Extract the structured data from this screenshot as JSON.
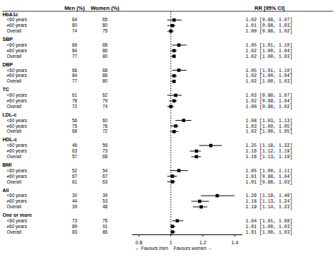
{
  "chart_data": {
    "type": "forest",
    "headers": {
      "men": "Men (%)",
      "women": "Women (%)",
      "rr": "RR [95% CI]"
    },
    "groups": [
      {
        "label": "HbA1c",
        "rows": [
          {
            "name": "<60 years",
            "men": 64,
            "women": 65,
            "rr": 1.02,
            "ci_lo": 0.98,
            "ci_hi": 1.07,
            "rr_text": "1.02 [0.98, 1.07]"
          },
          {
            "name": "≠60 years",
            "men": 80,
            "women": 80,
            "rr": 1.01,
            "ci_lo": 0.98,
            "ci_hi": 1.03,
            "rr_text": "1.01 [0.98, 1.03]"
          },
          {
            "name": "Overall",
            "men": 74,
            "women": 75,
            "rr": 1.0,
            "ci_lo": 0.98,
            "ci_hi": 1.02,
            "rr_text": "1.00 [0.98, 1.02]"
          }
        ]
      },
      {
        "label": "SBP",
        "rows": [
          {
            "name": "<60 years",
            "men": 66,
            "women": 68,
            "rr": 1.05,
            "ci_lo": 1.01,
            "ci_hi": 1.1,
            "rr_text": "1.05 [1.01, 1.10]"
          },
          {
            "name": "≠60 years",
            "men": 84,
            "women": 86,
            "rr": 1.02,
            "ci_lo": 1.0,
            "ci_hi": 1.04,
            "rr_text": "1.02 [1.00, 1.04]"
          },
          {
            "name": "Overall",
            "men": 77,
            "women": 80,
            "rr": 1.02,
            "ci_lo": 1.0,
            "ci_hi": 1.03,
            "rr_text": "1.02 [1.00, 1.03]"
          }
        ]
      },
      {
        "label": "DBP",
        "rows": [
          {
            "name": "<60 years",
            "men": 66,
            "women": 68,
            "rr": 1.05,
            "ci_lo": 1.01,
            "ci_hi": 1.1,
            "rr_text": "1.05 [1.01, 1.10]"
          },
          {
            "name": "≠60 years",
            "men": 84,
            "women": 86,
            "rr": 1.02,
            "ci_lo": 1.0,
            "ci_hi": 1.04,
            "rr_text": "1.02 [1.00, 1.04]"
          },
          {
            "name": "Overall",
            "men": 77,
            "women": 80,
            "rr": 1.02,
            "ci_lo": 1.0,
            "ci_hi": 1.03,
            "rr_text": "1.02 [1.00, 1.03]"
          }
        ]
      },
      {
        "label": "TC",
        "rows": [
          {
            "name": "<60 years",
            "men": 61,
            "women": 62,
            "rr": 1.03,
            "ci_lo": 0.98,
            "ci_hi": 1.07,
            "rr_text": "1.03 [0.98, 1.07]"
          },
          {
            "name": "≠60 years",
            "men": 78,
            "women": 79,
            "rr": 1.02,
            "ci_lo": 0.99,
            "ci_hi": 1.04,
            "rr_text": "1.02 [0.99, 1.04]"
          },
          {
            "name": "Overall",
            "men": 72,
            "women": 74,
            "rr": 1.0,
            "ci_lo": 0.98,
            "ci_hi": 1.02,
            "rr_text": "1.00 [0.98, 1.02]"
          }
        ]
      },
      {
        "label": "LDL-c",
        "rows": [
          {
            "name": "<60 years",
            "men": 56,
            "women": 60,
            "rr": 1.08,
            "ci_lo": 1.03,
            "ci_hi": 1.13,
            "rr_text": "1.08 [1.03, 1.13]"
          },
          {
            "name": "≠60 years",
            "men": 75,
            "women": 78,
            "rr": 1.03,
            "ci_lo": 1.0,
            "ci_hi": 1.05,
            "rr_text": "1.03 [1.00, 1.05]"
          },
          {
            "name": "Overall",
            "men": 68,
            "women": 72,
            "rr": 1.02,
            "ci_lo": 1.0,
            "ci_hi": 1.05,
            "rr_text": "1.02 [1.00, 1.05]"
          }
        ]
      },
      {
        "label": "HDL-c",
        "rows": [
          {
            "name": "<60 years",
            "men": 46,
            "women": 56,
            "rr": 1.25,
            "ci_lo": 1.18,
            "ci_hi": 1.32,
            "rr_text": "1.25 [1.18, 1.32]"
          },
          {
            "name": "≠60 years",
            "men": 63,
            "women": 73,
            "rr": 1.16,
            "ci_lo": 1.12,
            "ci_hi": 1.19,
            "rr_text": "1.16 [1.12, 1.19]"
          },
          {
            "name": "Overall",
            "men": 57,
            "women": 68,
            "rr": 1.16,
            "ci_lo": 1.13,
            "ci_hi": 1.19,
            "rr_text": "1.16 [1.13, 1.19]"
          }
        ]
      },
      {
        "label": "BMI",
        "rows": [
          {
            "name": "<60 years",
            "men": 52,
            "women": 54,
            "rr": 1.05,
            "ci_lo": 1.0,
            "ci_hi": 1.11,
            "rr_text": "1.05 [1.00, 1.11]"
          },
          {
            "name": "≠60 years",
            "men": 67,
            "women": 67,
            "rr": 1.01,
            "ci_lo": 0.98,
            "ci_hi": 1.04,
            "rr_text": "1.01 [0.98, 1.04]"
          },
          {
            "name": "Overall",
            "men": 61,
            "women": 63,
            "rr": 1.01,
            "ci_lo": 0.98,
            "ci_hi": 1.03,
            "rr_text": "1.01 [0.98, 1.03]"
          }
        ]
      },
      {
        "label": "All",
        "rows": [
          {
            "name": "<60 years",
            "men": 30,
            "women": 39,
            "rr": 1.29,
            "ci_lo": 1.19,
            "ci_hi": 1.4,
            "rr_text": "1.29 [1.19, 1.40]"
          },
          {
            "name": "≠60 years",
            "men": 44,
            "women": 53,
            "rr": 1.18,
            "ci_lo": 1.13,
            "ci_hi": 1.24,
            "rr_text": "1.18 [1.13, 1.24]"
          },
          {
            "name": "Overall",
            "men": 39,
            "women": 48,
            "rr": 1.19,
            "ci_lo": 1.14,
            "ci_hi": 1.23,
            "rr_text": "1.19 [1.14, 1.23]"
          }
        ]
      },
      {
        "label": "One or more",
        "rows": [
          {
            "name": "<60 years",
            "men": 73,
            "women": 75,
            "rr": 1.04,
            "ci_lo": 1.01,
            "ci_hi": 1.08,
            "rr_text": "1.04 [1.01, 1.08]"
          },
          {
            "name": "≠60 years",
            "men": 89,
            "women": 91,
            "rr": 1.01,
            "ci_lo": 1.0,
            "ci_hi": 1.03,
            "rr_text": "1.01 [1.00, 1.03]"
          },
          {
            "name": "Overall",
            "men": 83,
            "women": 86,
            "rr": 1.01,
            "ci_lo": 1.0,
            "ci_hi": 1.03,
            "rr_text": "1.01 [1.00, 1.03]"
          }
        ]
      }
    ],
    "xlim": [
      0.76,
      1.45
    ],
    "xticks": [
      0.8,
      1,
      1.2,
      1.4
    ],
    "reference_line": 1.0,
    "xlabel_left": "← Favours men",
    "xlabel_right": "Favours women →"
  }
}
